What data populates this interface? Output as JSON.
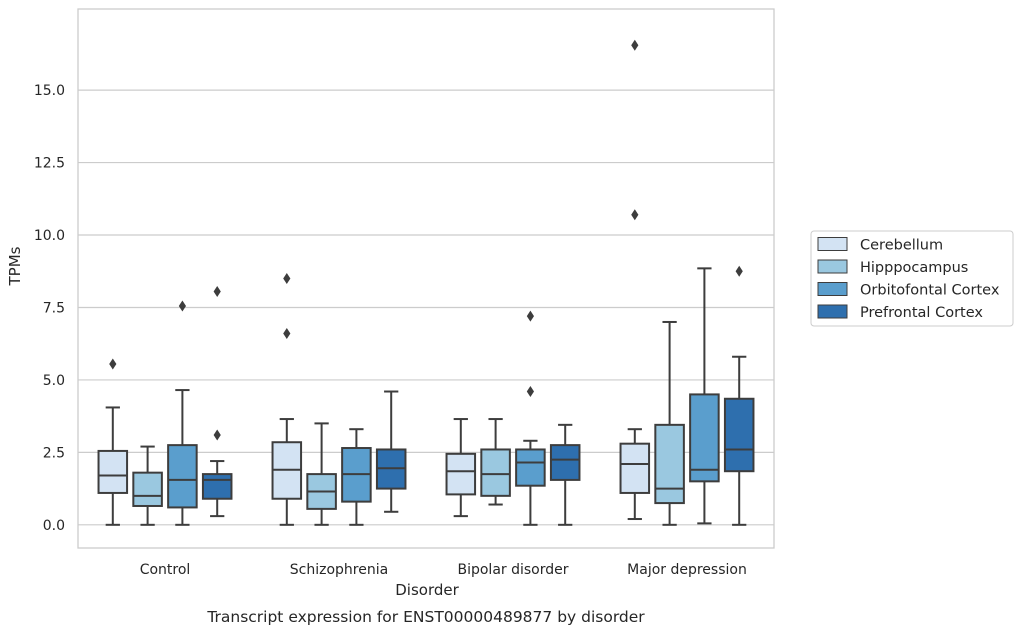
{
  "caption": "Transcript expression for ENST00000489877 by disorder",
  "chart_data": {
    "type": "boxplot",
    "title": "",
    "xlabel": "Disorder",
    "ylabel": "TPMs",
    "ylim": [
      -0.8,
      17.8
    ],
    "yticks": [
      0.0,
      2.5,
      5.0,
      7.5,
      10.0,
      12.5,
      15.0
    ],
    "ytick_labels": [
      "0.0",
      "2.5",
      "5.0",
      "7.5",
      "10.0",
      "12.5",
      "15.0"
    ],
    "grid": "horizontal",
    "legend_position": "right",
    "categories": [
      "Control",
      "Schizophrenia",
      "Bipolar disorder",
      "Major depression"
    ],
    "series": [
      {
        "name": "Cerebellum",
        "color": "#d3e3f3",
        "boxes": [
          {
            "min": 0.0,
            "q1": 1.1,
            "median": 1.7,
            "q3": 2.55,
            "max": 4.05,
            "outliers": [
              5.55
            ]
          },
          {
            "min": 0.0,
            "q1": 0.9,
            "median": 1.9,
            "q3": 2.85,
            "max": 3.65,
            "outliers": [
              8.5,
              6.6
            ]
          },
          {
            "min": 0.3,
            "q1": 1.05,
            "median": 1.85,
            "q3": 2.45,
            "max": 3.65,
            "outliers": []
          },
          {
            "min": 0.2,
            "q1": 1.1,
            "median": 2.1,
            "q3": 2.8,
            "max": 3.3,
            "outliers": [
              16.55,
              10.7
            ]
          }
        ]
      },
      {
        "name": "Hipppocampus",
        "color": "#9ac8e0",
        "boxes": [
          {
            "min": 0.0,
            "q1": 0.65,
            "median": 1.0,
            "q3": 1.8,
            "max": 2.7,
            "outliers": []
          },
          {
            "min": 0.0,
            "q1": 0.55,
            "median": 1.15,
            "q3": 1.75,
            "max": 3.5,
            "outliers": []
          },
          {
            "min": 0.7,
            "q1": 1.0,
            "median": 1.75,
            "q3": 2.6,
            "max": 3.65,
            "outliers": []
          },
          {
            "min": 0.0,
            "q1": 0.75,
            "median": 1.25,
            "q3": 3.45,
            "max": 7.0,
            "outliers": []
          }
        ]
      },
      {
        "name": "Orbitofontal Cortex",
        "color": "#5a9ecd",
        "boxes": [
          {
            "min": 0.0,
            "q1": 0.6,
            "median": 1.55,
            "q3": 2.75,
            "max": 4.65,
            "outliers": [
              7.55
            ]
          },
          {
            "min": 0.0,
            "q1": 0.8,
            "median": 1.75,
            "q3": 2.65,
            "max": 3.3,
            "outliers": []
          },
          {
            "min": 0.0,
            "q1": 1.35,
            "median": 2.15,
            "q3": 2.6,
            "max": 2.9,
            "outliers": [
              7.2,
              4.6
            ]
          },
          {
            "min": 0.05,
            "q1": 1.5,
            "median": 1.9,
            "q3": 4.5,
            "max": 8.85,
            "outliers": []
          }
        ]
      },
      {
        "name": "Prefrontal Cortex",
        "color": "#2e6fae",
        "boxes": [
          {
            "min": 0.3,
            "q1": 0.9,
            "median": 1.55,
            "q3": 1.75,
            "max": 2.2,
            "outliers": [
              8.05,
              3.1
            ]
          },
          {
            "min": 0.45,
            "q1": 1.25,
            "median": 1.95,
            "q3": 2.6,
            "max": 4.6,
            "outliers": []
          },
          {
            "min": 0.0,
            "q1": 1.55,
            "median": 2.25,
            "q3": 2.75,
            "max": 3.45,
            "outliers": []
          },
          {
            "min": 0.0,
            "q1": 1.85,
            "median": 2.6,
            "q3": 4.35,
            "max": 5.8,
            "outliers": [
              8.75
            ]
          }
        ]
      }
    ]
  }
}
